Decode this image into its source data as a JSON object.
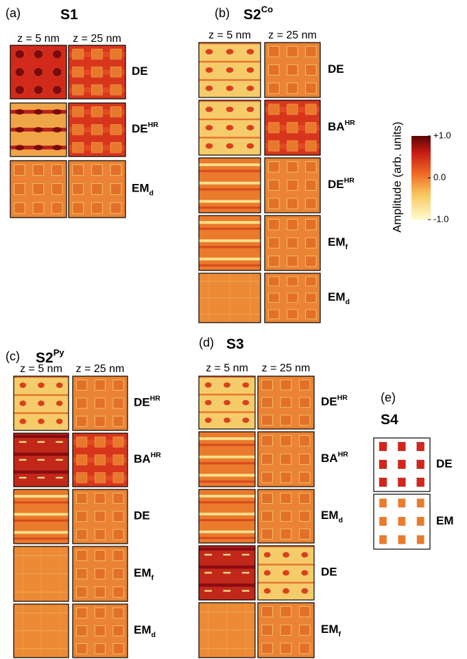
{
  "panels": [
    {
      "label": "(a)",
      "title": {
        "base": "S1"
      },
      "z": [
        "z = 5 nm",
        "z = 25 nm"
      ],
      "modes": [
        {
          "base": "DE"
        },
        {
          "base": "DE",
          "sup": "HR"
        },
        {
          "base": "EM",
          "sub": "d"
        }
      ]
    },
    {
      "label": "(b)",
      "title": {
        "base": "S2",
        "sup": "Co"
      },
      "z": [
        "z = 5 nm",
        "z = 25 nm"
      ],
      "modes": [
        {
          "base": "DE"
        },
        {
          "base": "BA",
          "sup": "HR"
        },
        {
          "base": "DE",
          "sup": "HR"
        },
        {
          "base": "EM",
          "sub": "f"
        },
        {
          "base": "EM",
          "sub": "d"
        }
      ]
    },
    {
      "label": "(c)",
      "title": {
        "base": "S2",
        "sup": "Py"
      },
      "z": [
        "z = 5 nm",
        "z = 25 nm"
      ],
      "modes": [
        {
          "base": "DE",
          "sup": "HR"
        },
        {
          "base": "BA",
          "sup": "HR"
        },
        {
          "base": "DE"
        },
        {
          "base": "EM",
          "sub": "f"
        },
        {
          "base": "EM",
          "sub": "d"
        }
      ]
    },
    {
      "label": "(d)",
      "title": {
        "base": "S3"
      },
      "z": [
        "z = 5 nm",
        "z = 25 nm"
      ],
      "modes": [
        {
          "base": "DE",
          "sup": "HR"
        },
        {
          "base": "BA",
          "sup": "HR"
        },
        {
          "base": "EM",
          "sub": "d"
        },
        {
          "base": "DE"
        },
        {
          "base": "EM",
          "sub": "f"
        }
      ]
    },
    {
      "label": "(e)",
      "title": {
        "base": "S4"
      },
      "modes": [
        {
          "base": "DE"
        },
        {
          "base": "EM"
        }
      ]
    }
  ],
  "colorbar": {
    "label": "Amplitude (arb. units)",
    "lim": [
      -1,
      1
    ],
    "ticks": [
      {
        "value": 1,
        "label": "+1.0"
      },
      {
        "value": 0,
        "label": "0.0"
      },
      {
        "value": -1,
        "label": "-1.0"
      }
    ]
  }
}
